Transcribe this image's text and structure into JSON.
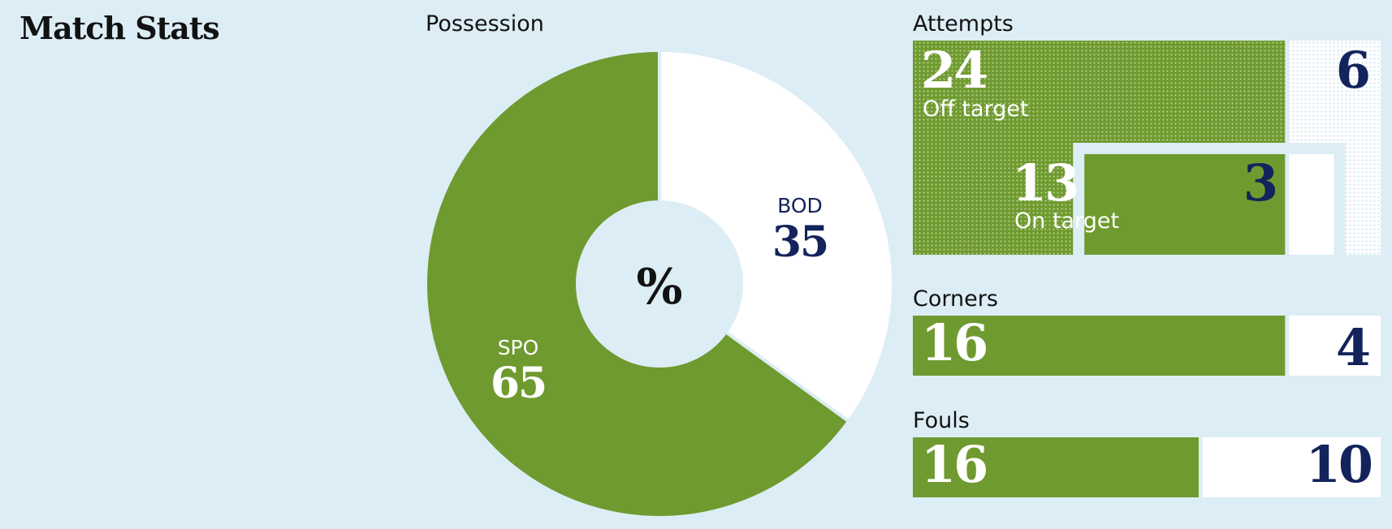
{
  "title": "Match Stats",
  "colors": {
    "home": "#6f9a2f",
    "away": "#ffffff",
    "away_text": "#13235b",
    "background": "#dcedf5",
    "ink": "#121212"
  },
  "chart_data": [
    {
      "type": "pie",
      "title": "Possession",
      "center_label": "%",
      "slices": [
        {
          "name": "BOD",
          "value": 35
        },
        {
          "name": "SPO",
          "value": 65
        }
      ]
    },
    {
      "type": "bar",
      "title": "Attempts",
      "home": {
        "total": 24,
        "on_target": 13
      },
      "away": {
        "total": 6,
        "on_target": 3
      },
      "labels": {
        "total": "Off target",
        "on_target": "On target"
      }
    },
    {
      "type": "bar",
      "title": "Corners",
      "home": 16,
      "away": 4
    },
    {
      "type": "bar",
      "title": "Fouls",
      "home": 16,
      "away": 10
    }
  ]
}
